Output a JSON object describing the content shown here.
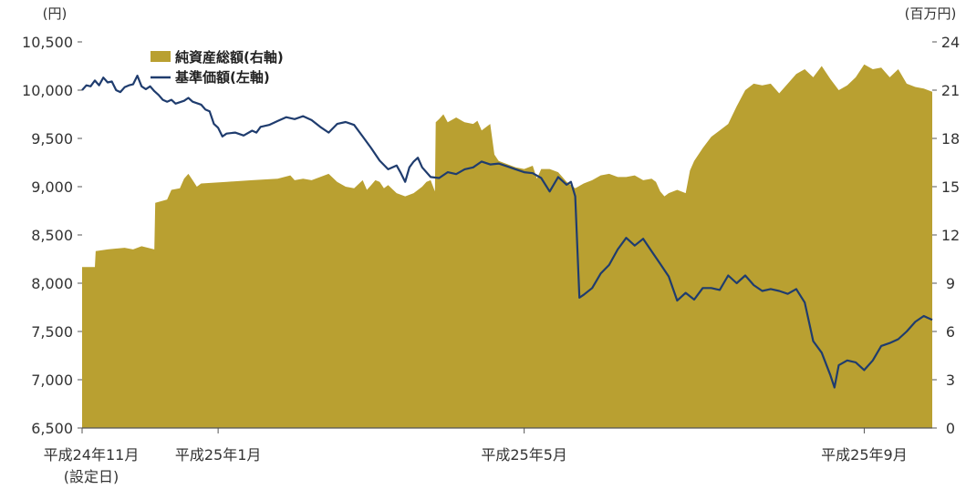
{
  "chart_data": {
    "type": "line",
    "left_axis": {
      "unit_label": "(円)",
      "ticks": [
        6500,
        7000,
        7500,
        8000,
        8500,
        9000,
        9500,
        10000,
        10500
      ],
      "tick_labels": [
        "6,500",
        "7,000",
        "7,500",
        "8,000",
        "8,500",
        "9,000",
        "9,500",
        "10,000",
        "10,500"
      ],
      "range": [
        6500,
        10500
      ]
    },
    "right_axis": {
      "unit_label": "(百万円)",
      "ticks": [
        0,
        3,
        6,
        9,
        12,
        15,
        18,
        21,
        24
      ],
      "tick_labels": [
        "0",
        "3",
        "6",
        "9",
        "12",
        "15",
        "18",
        "21",
        "24"
      ],
      "range": [
        0,
        24
      ]
    },
    "x_axis": {
      "range": [
        0,
        100
      ],
      "ticks": [
        {
          "x": 0,
          "label": "平成24年11月",
          "sublabel": "(設定日)"
        },
        {
          "x": 16,
          "label": "平成25年1月",
          "sublabel": ""
        },
        {
          "x": 52,
          "label": "平成25年5月",
          "sublabel": ""
        },
        {
          "x": 92,
          "label": "平成25年9月",
          "sublabel": ""
        }
      ]
    },
    "legend": {
      "placement": "top-left",
      "entries": [
        "純資産総額(右軸)",
        "基準価額(左軸)"
      ]
    },
    "series": [
      {
        "name": "純資産総額(右軸)",
        "kind": "area",
        "axis": "right",
        "color": "#B9A031",
        "points": [
          [
            0,
            10
          ],
          [
            1.5,
            10
          ],
          [
            1.6,
            11
          ],
          [
            3,
            11.1
          ],
          [
            5,
            11.2
          ],
          [
            6,
            11.1
          ],
          [
            7,
            11.3
          ],
          [
            8.5,
            11.1
          ],
          [
            8.6,
            14
          ],
          [
            10,
            14.2
          ],
          [
            10.5,
            14.8
          ],
          [
            11.5,
            14.9
          ],
          [
            12,
            15.5
          ],
          [
            12.5,
            15.8
          ],
          [
            13,
            15.4
          ],
          [
            13.5,
            15
          ],
          [
            14,
            15.2
          ],
          [
            17,
            15.3
          ],
          [
            20,
            15.4
          ],
          [
            23,
            15.5
          ],
          [
            24.5,
            15.7
          ],
          [
            25,
            15.4
          ],
          [
            26,
            15.5
          ],
          [
            27,
            15.4
          ],
          [
            28,
            15.6
          ],
          [
            29,
            15.8
          ],
          [
            30,
            15.3
          ],
          [
            31,
            15
          ],
          [
            32,
            14.9
          ],
          [
            33,
            15.4
          ],
          [
            33.5,
            14.8
          ],
          [
            34,
            15.1
          ],
          [
            34.5,
            15.4
          ],
          [
            35,
            15.3
          ],
          [
            35.5,
            14.9
          ],
          [
            36,
            15.1
          ],
          [
            37,
            14.6
          ],
          [
            38,
            14.4
          ],
          [
            39,
            14.6
          ],
          [
            40,
            15
          ],
          [
            40.5,
            15.3
          ],
          [
            41,
            15.4
          ],
          [
            41.5,
            14.7
          ],
          [
            41.6,
            19
          ],
          [
            42,
            19.2
          ],
          [
            42.5,
            19.5
          ],
          [
            43,
            19
          ],
          [
            44,
            19.3
          ],
          [
            45,
            19
          ],
          [
            46,
            18.9
          ],
          [
            46.5,
            19.1
          ],
          [
            47,
            18.5
          ],
          [
            48,
            18.9
          ],
          [
            48.5,
            17
          ],
          [
            49,
            16.6
          ],
          [
            50,
            16.4
          ],
          [
            51,
            16.2
          ],
          [
            52,
            16.1
          ],
          [
            53,
            16.3
          ],
          [
            53.5,
            15.5
          ],
          [
            54,
            16.1
          ],
          [
            55,
            16.1
          ],
          [
            56,
            15.9
          ],
          [
            57,
            15.3
          ],
          [
            58,
            14.9
          ],
          [
            59,
            15.2
          ],
          [
            60,
            15.4
          ],
          [
            61,
            15.7
          ],
          [
            62,
            15.8
          ],
          [
            63,
            15.6
          ],
          [
            64,
            15.6
          ],
          [
            65,
            15.7
          ],
          [
            66,
            15.4
          ],
          [
            67,
            15.5
          ],
          [
            67.5,
            15.3
          ],
          [
            68,
            14.7
          ],
          [
            68.5,
            14.4
          ],
          [
            69,
            14.6
          ],
          [
            70,
            14.8
          ],
          [
            71,
            14.6
          ],
          [
            71.5,
            16
          ],
          [
            72,
            16.6
          ],
          [
            73,
            17.4
          ],
          [
            74,
            18.1
          ],
          [
            75,
            18.5
          ],
          [
            76,
            18.9
          ],
          [
            77,
            20
          ],
          [
            78,
            21
          ],
          [
            79,
            21.4
          ],
          [
            80,
            21.3
          ],
          [
            81,
            21.4
          ],
          [
            82,
            20.8
          ],
          [
            83,
            21.4
          ],
          [
            84,
            22
          ],
          [
            85,
            22.3
          ],
          [
            86,
            21.8
          ],
          [
            87,
            22.5
          ],
          [
            88,
            21.7
          ],
          [
            89,
            21
          ],
          [
            90,
            21.3
          ],
          [
            91,
            21.8
          ],
          [
            92,
            22.6
          ],
          [
            93,
            22.3
          ],
          [
            94,
            22.4
          ],
          [
            95,
            21.8
          ],
          [
            96,
            22.3
          ],
          [
            97,
            21.4
          ],
          [
            98,
            21.2
          ],
          [
            99,
            21.1
          ],
          [
            100,
            20.9
          ]
        ]
      },
      {
        "name": "基準価額(左軸)",
        "kind": "line",
        "axis": "left",
        "color": "#1F3C6E",
        "points": [
          [
            0,
            10000
          ],
          [
            0.5,
            10050
          ],
          [
            1,
            10040
          ],
          [
            1.5,
            10100
          ],
          [
            2,
            10050
          ],
          [
            2.5,
            10130
          ],
          [
            3,
            10080
          ],
          [
            3.5,
            10090
          ],
          [
            4,
            10000
          ],
          [
            4.5,
            9980
          ],
          [
            5,
            10030
          ],
          [
            5.5,
            10050
          ],
          [
            6,
            10060
          ],
          [
            6.5,
            10150
          ],
          [
            7,
            10040
          ],
          [
            7.5,
            10010
          ],
          [
            8,
            10040
          ],
          [
            8.5,
            9990
          ],
          [
            9,
            9950
          ],
          [
            9.5,
            9900
          ],
          [
            10,
            9880
          ],
          [
            10.5,
            9900
          ],
          [
            11,
            9860
          ],
          [
            12,
            9890
          ],
          [
            12.5,
            9920
          ],
          [
            13,
            9880
          ],
          [
            14,
            9850
          ],
          [
            14.5,
            9800
          ],
          [
            15,
            9780
          ],
          [
            15.5,
            9650
          ],
          [
            16,
            9610
          ],
          [
            16.5,
            9520
          ],
          [
            17,
            9550
          ],
          [
            18,
            9560
          ],
          [
            19,
            9530
          ],
          [
            20,
            9580
          ],
          [
            20.5,
            9560
          ],
          [
            21,
            9620
          ],
          [
            22,
            9640
          ],
          [
            23,
            9680
          ],
          [
            24,
            9720
          ],
          [
            25,
            9700
          ],
          [
            26,
            9730
          ],
          [
            27,
            9690
          ],
          [
            28,
            9620
          ],
          [
            29,
            9560
          ],
          [
            30,
            9650
          ],
          [
            31,
            9670
          ],
          [
            32,
            9640
          ],
          [
            33,
            9520
          ],
          [
            34,
            9400
          ],
          [
            35,
            9270
          ],
          [
            36,
            9180
          ],
          [
            37,
            9220
          ],
          [
            37.5,
            9140
          ],
          [
            38,
            9050
          ],
          [
            38.5,
            9200
          ],
          [
            39,
            9260
          ],
          [
            39.5,
            9300
          ],
          [
            40,
            9200
          ],
          [
            41,
            9100
          ],
          [
            42,
            9090
          ],
          [
            43,
            9150
          ],
          [
            44,
            9130
          ],
          [
            45,
            9180
          ],
          [
            46,
            9200
          ],
          [
            47,
            9260
          ],
          [
            48,
            9230
          ],
          [
            49,
            9240
          ],
          [
            50,
            9210
          ],
          [
            51,
            9180
          ],
          [
            52,
            9150
          ],
          [
            53,
            9140
          ],
          [
            54,
            9090
          ],
          [
            55,
            8950
          ],
          [
            56,
            9100
          ],
          [
            57,
            9020
          ],
          [
            57.5,
            9050
          ],
          [
            58,
            8900
          ],
          [
            58.5,
            7850
          ],
          [
            59,
            7880
          ],
          [
            60,
            7950
          ],
          [
            61,
            8100
          ],
          [
            62,
            8190
          ],
          [
            63,
            8350
          ],
          [
            64,
            8470
          ],
          [
            65,
            8390
          ],
          [
            66,
            8460
          ],
          [
            67,
            8330
          ],
          [
            68,
            8200
          ],
          [
            69,
            8070
          ],
          [
            70,
            7820
          ],
          [
            71,
            7900
          ],
          [
            72,
            7830
          ],
          [
            73,
            7950
          ],
          [
            74,
            7950
          ],
          [
            75,
            7930
          ],
          [
            76,
            8080
          ],
          [
            77,
            8000
          ],
          [
            78,
            8080
          ],
          [
            79,
            7980
          ],
          [
            80,
            7920
          ],
          [
            81,
            7940
          ],
          [
            82,
            7920
          ],
          [
            83,
            7890
          ],
          [
            84,
            7940
          ],
          [
            85,
            7800
          ],
          [
            86,
            7400
          ],
          [
            87,
            7280
          ],
          [
            88,
            7050
          ],
          [
            88.5,
            6920
          ],
          [
            89,
            7150
          ],
          [
            90,
            7200
          ],
          [
            91,
            7180
          ],
          [
            92,
            7100
          ],
          [
            93,
            7200
          ],
          [
            94,
            7350
          ],
          [
            95,
            7380
          ],
          [
            96,
            7420
          ],
          [
            97,
            7500
          ],
          [
            98,
            7600
          ],
          [
            99,
            7660
          ],
          [
            100,
            7620
          ]
        ]
      }
    ]
  }
}
